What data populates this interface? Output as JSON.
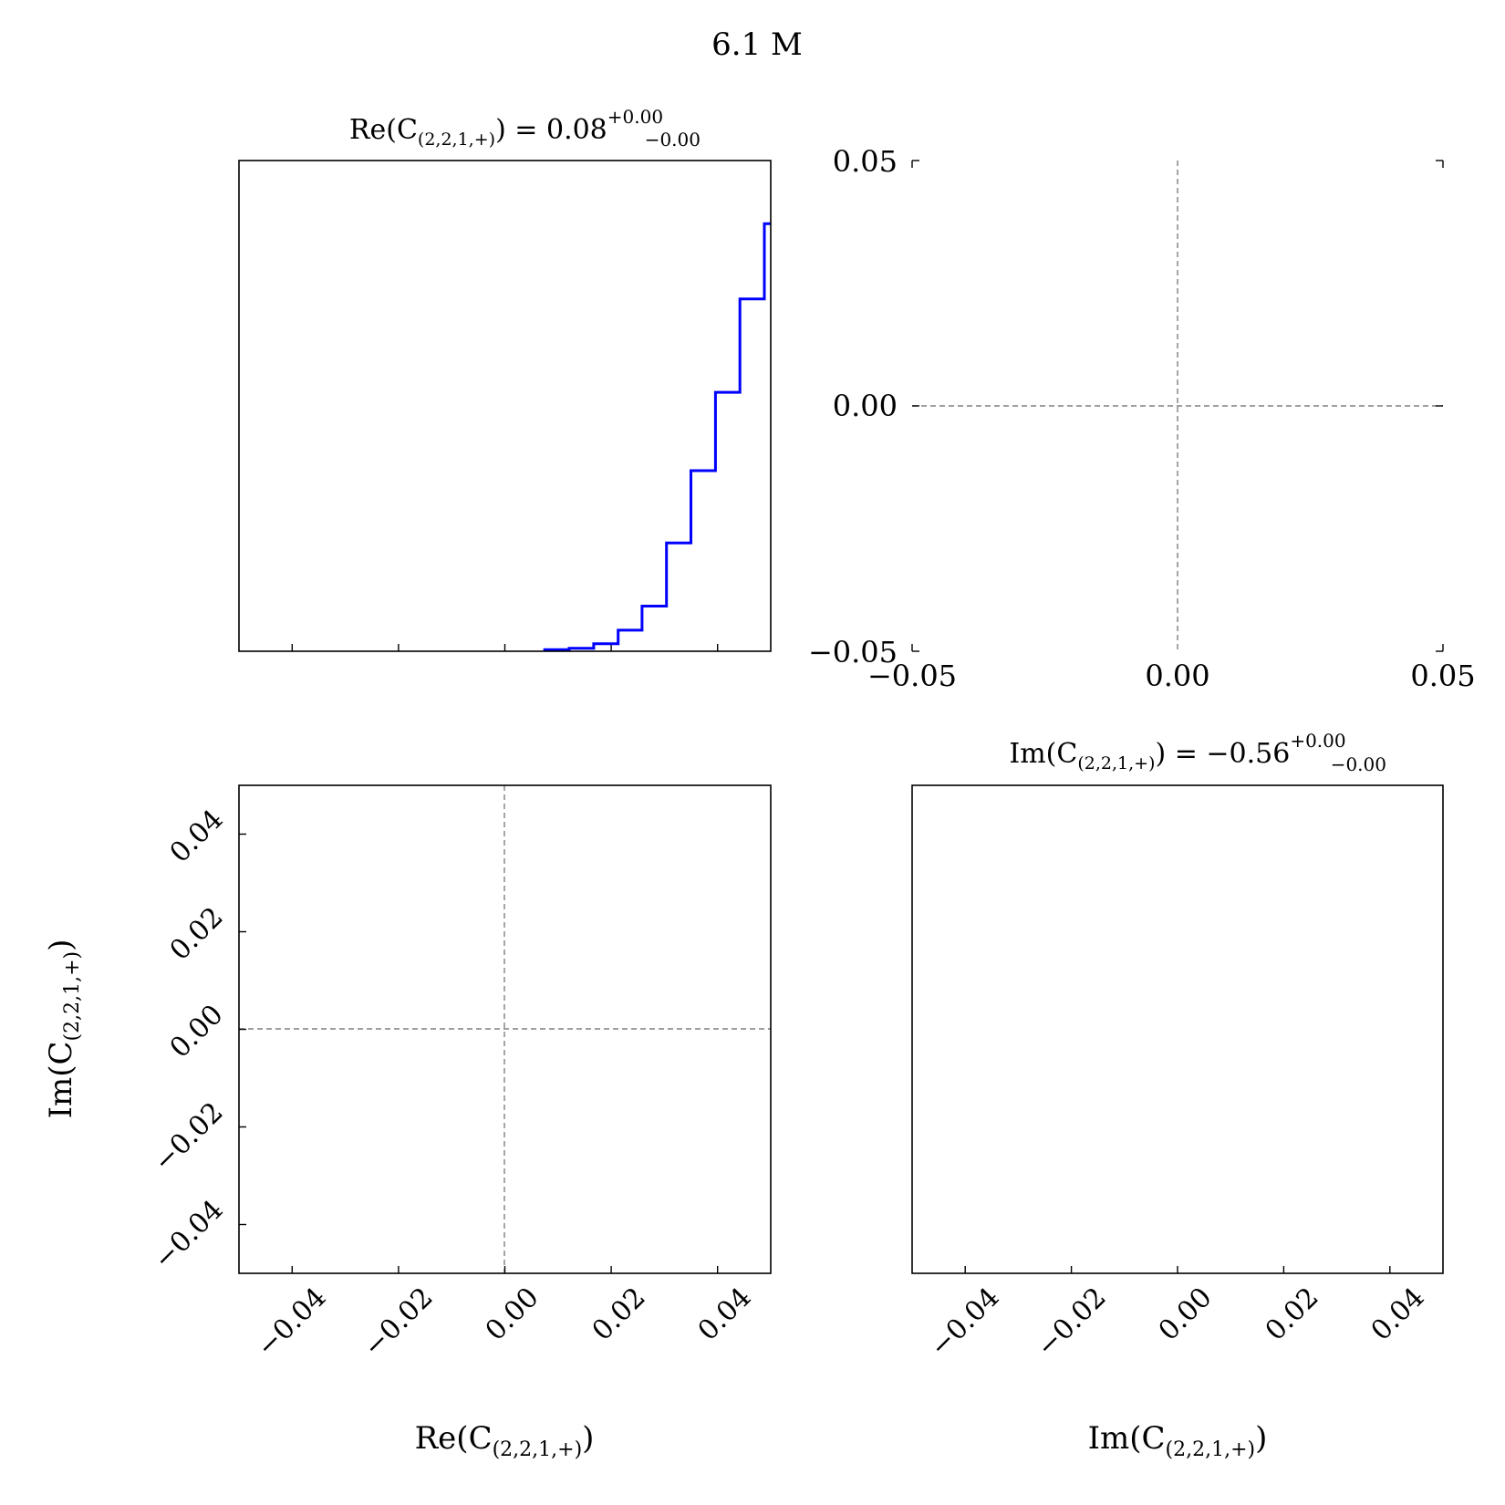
{
  "figure": {
    "title": "6.1 M",
    "colors": {
      "hist": "#0000ff",
      "guide": "#7f7f7f",
      "frame": "#000000"
    }
  },
  "chart_data": [
    {
      "type": "histogram",
      "panel": "top-left",
      "title": {
        "prefix": "Re(C",
        "sub": "(2,2,1,+)",
        "suffix": ") = 0.08",
        "sup": "+0.00",
        "low": "−0.00"
      },
      "xlim": [
        -0.05,
        0.05
      ],
      "xticks": [
        -0.04,
        -0.02,
        0.0,
        0.02,
        0.04
      ],
      "xtick_labels_shown": false,
      "bin_edges": [
        0.0075,
        0.0121,
        0.0167,
        0.0213,
        0.0258,
        0.0304,
        0.035,
        0.0396,
        0.0442,
        0.0488,
        0.05
      ],
      "counts": [
        0.005,
        0.01,
        0.025,
        0.07,
        0.15,
        0.36,
        0.6,
        0.86,
        1.17,
        1.42
      ],
      "ylim": [
        0,
        1.63
      ]
    },
    {
      "type": "scatter",
      "panel": "top-right",
      "points": [],
      "xlim": [
        -0.05,
        0.05
      ],
      "ylim": [
        -0.05,
        0.05
      ],
      "xtick_labels": [
        "−0.05",
        "0.00",
        "0.05"
      ],
      "ytick_labels": [
        "0.05",
        "0.00",
        "−0.05"
      ],
      "reference_lines": {
        "x": 0.0,
        "y": 0.0
      }
    },
    {
      "type": "scatter",
      "panel": "bottom-left",
      "points": [],
      "xlim": [
        -0.05,
        0.05
      ],
      "ylim": [
        -0.05,
        0.05
      ],
      "xlabel": {
        "prefix": "Re(C",
        "sub": "(2,2,1,+)",
        "suffix": ")"
      },
      "ylabel": {
        "prefix": "Im(C",
        "sub": "(2,2,1,+)",
        "suffix": ")"
      },
      "xtick_labels": [
        "−0.04",
        "−0.02",
        "0.00",
        "0.02",
        "0.04"
      ],
      "ytick_labels": [
        "0.04",
        "0.02",
        "0.00",
        "−0.02",
        "−0.04"
      ],
      "reference_lines": {
        "x": 0.0,
        "y": 0.0
      }
    },
    {
      "type": "histogram",
      "panel": "bottom-right",
      "title": {
        "prefix": "Im(C",
        "sub": "(2,2,1,+)",
        "suffix": ") = −0.56",
        "sup": "+0.00",
        "low": "−0.00"
      },
      "xlabel": {
        "prefix": "Im(C",
        "sub": "(2,2,1,+)",
        "suffix": ")"
      },
      "xlim": [
        -0.05,
        0.05
      ],
      "xtick_labels": [
        "−0.04",
        "−0.02",
        "0.00",
        "0.02",
        "0.04"
      ],
      "bin_edges": [],
      "counts": []
    }
  ]
}
